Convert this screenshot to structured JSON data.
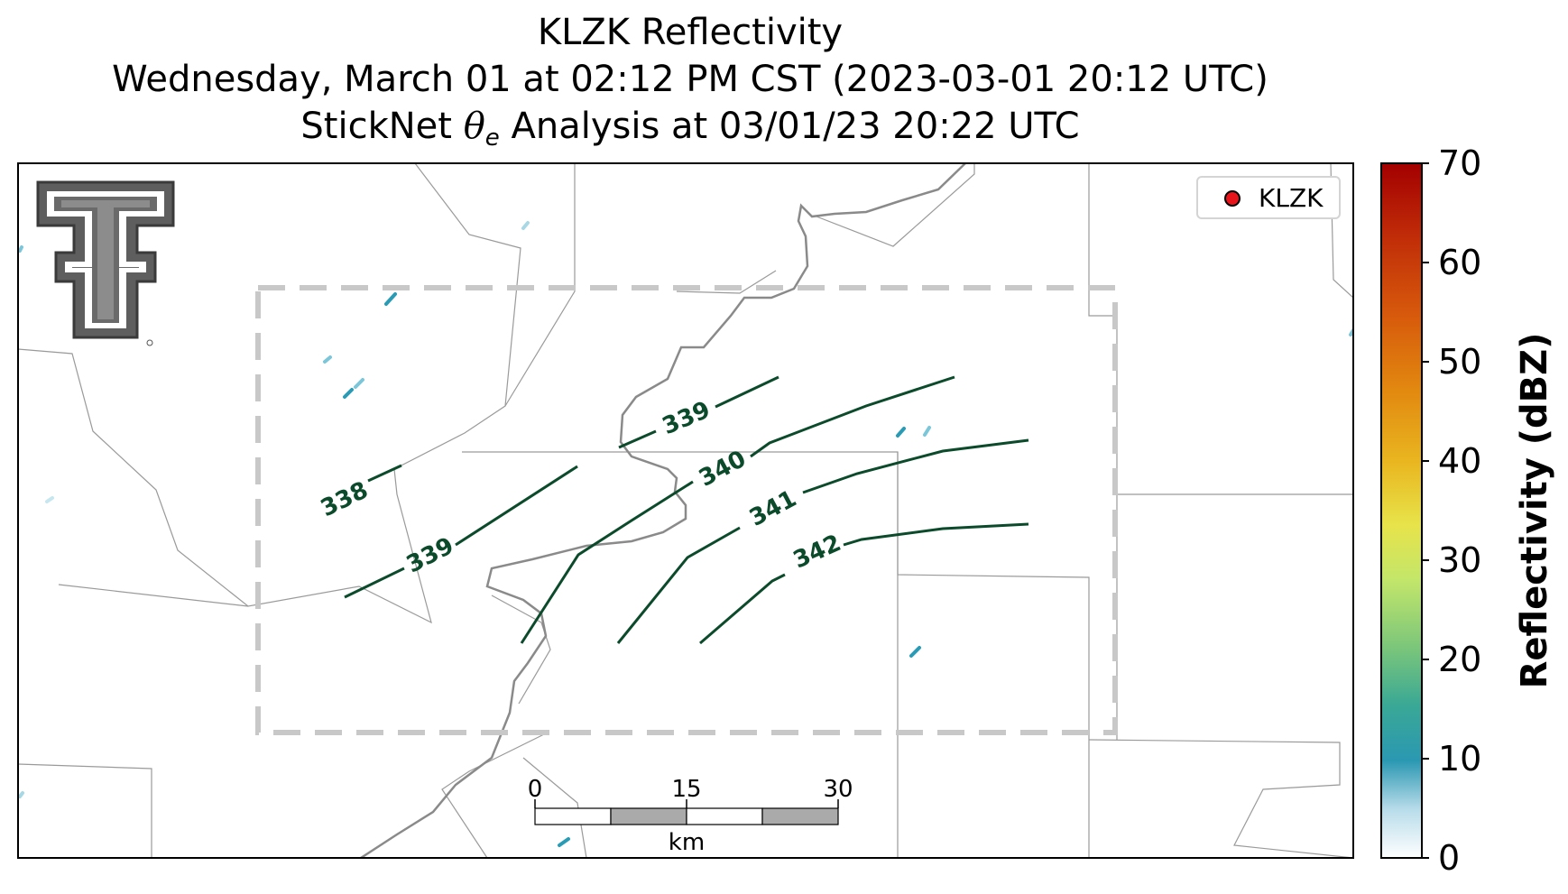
{
  "title": {
    "line1": "KLZK Reflectivity",
    "line2": "Wednesday, March 01 at 02:12 PM CST (2023-03-01 20:12 UTC)",
    "line3_prefix": "StickNet",
    "line3_theta": "θ",
    "line3_sub": "e",
    "line3_suffix": "Analysis at 03/01/23 20:22 UTC"
  },
  "legend": {
    "label": "KLZK",
    "marker_color": "#e8141b"
  },
  "colorbar": {
    "label": "Reflectivity (dBZ)",
    "ticks": [
      "0",
      "10",
      "20",
      "30",
      "40",
      "50",
      "60",
      "70"
    ]
  },
  "scale_bar": {
    "ticks": [
      "0",
      "15",
      "30"
    ],
    "unit": "km"
  },
  "contour_labels": [
    "338",
    "339",
    "339",
    "340",
    "341",
    "342"
  ],
  "colors": {
    "contour": "#0b4a2a",
    "county_border": "#999999",
    "river": "#8a8a8a",
    "analysis_box": "#c8c8c8",
    "reflectivity_low": "#2a9bb5"
  },
  "icons": {
    "logo": "double-t-logo-icon"
  }
}
